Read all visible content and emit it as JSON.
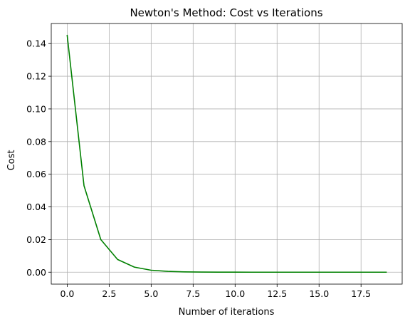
{
  "chart_data": {
    "type": "line",
    "title": "Newton's Method: Cost vs Iterations",
    "xlabel": "Number of iterations",
    "ylabel": "Cost",
    "xlim": [
      -0.95,
      19.95
    ],
    "ylim": [
      -0.0073,
      0.1523
    ],
    "xticks": [
      0,
      2.5,
      5,
      7.5,
      10,
      12.5,
      15,
      17.5
    ],
    "xtick_labels": [
      "0.0",
      "2.5",
      "5.0",
      "7.5",
      "10.0",
      "12.5",
      "15.0",
      "17.5"
    ],
    "yticks": [
      0,
      0.02,
      0.04,
      0.06,
      0.08,
      0.1,
      0.12,
      0.14
    ],
    "ytick_labels": [
      "0.00",
      "0.02",
      "0.04",
      "0.06",
      "0.08",
      "0.10",
      "0.12",
      "0.14"
    ],
    "grid": true,
    "series": [
      {
        "color": "#008000",
        "x": [
          0,
          1,
          2,
          3,
          4,
          5,
          6,
          7,
          8,
          9,
          10,
          11,
          12,
          13,
          14,
          15,
          16,
          17,
          18,
          19
        ],
        "values": [
          0.145,
          0.053,
          0.02,
          0.0078,
          0.0031,
          0.0012,
          0.0005,
          0.0002,
          0.0001,
          4e-05,
          2e-05,
          1e-05,
          0,
          0,
          0,
          0,
          0,
          0,
          0,
          0
        ]
      }
    ]
  }
}
